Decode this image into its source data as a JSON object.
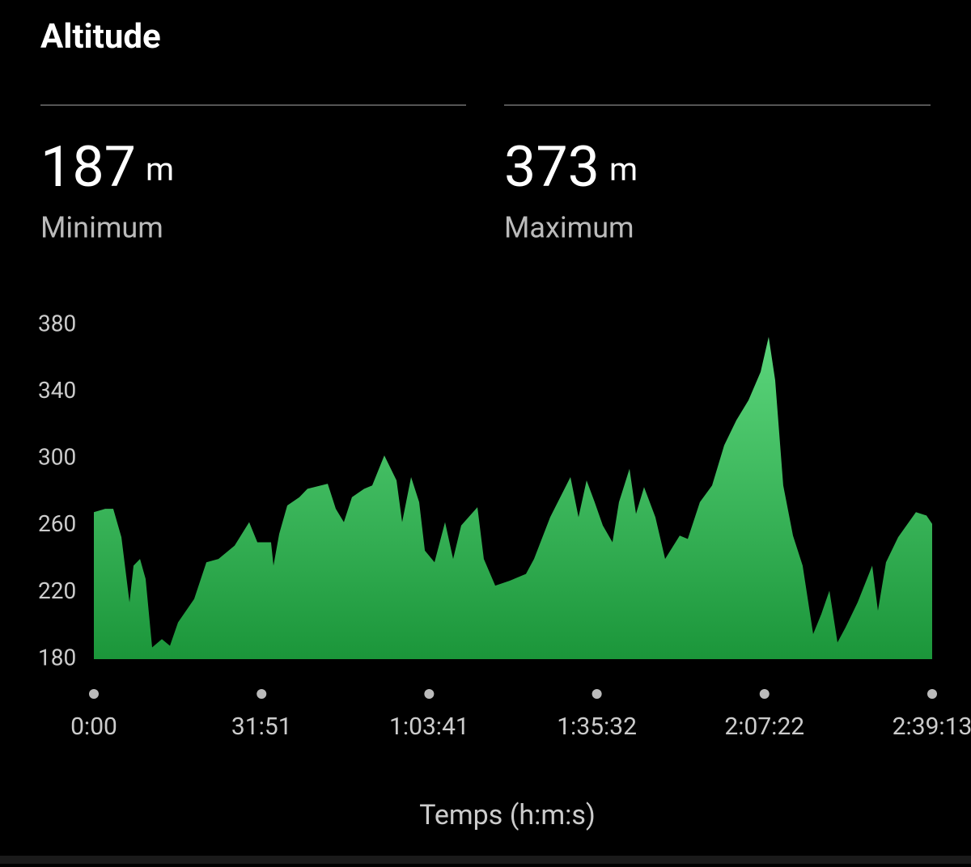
{
  "title": "Altitude",
  "stats": [
    {
      "value": 187,
      "unit": "m",
      "label": "Minimum"
    },
    {
      "value": 373,
      "unit": "m",
      "label": "Maximum"
    }
  ],
  "chart_data": {
    "type": "area",
    "x_label": "Temps (h:m:s)",
    "gradient": [
      "#5cd67c",
      "#1b963a"
    ],
    "x": [
      0,
      129,
      221,
      314,
      406,
      452,
      526,
      590,
      664,
      775,
      867,
      959,
      1143,
      1282,
      1420,
      1604,
      1770,
      1863,
      2019,
      2047,
      2112,
      2204,
      2342,
      2434,
      2665,
      2757,
      2849,
      2941,
      3080,
      3172,
      3310,
      3449,
      3513,
      3615,
      3707,
      3772,
      3882,
      4002,
      4094,
      4186,
      4371,
      4444,
      4574,
      4740,
      4924,
      5016,
      5200,
      5431,
      5523,
      5615,
      5707,
      5800,
      5910,
      5984,
      6104,
      6178,
      6270,
      6399,
      6510,
      6676,
      6768,
      6906,
      7045,
      7183,
      7321,
      7460,
      7598,
      7690,
      7764,
      7856,
      7967,
      8077,
      8197,
      8290,
      8382,
      8474,
      8566,
      8704,
      8870,
      8935,
      9027,
      9165,
      9368,
      9488,
      9553
    ],
    "values": [
      268,
      270,
      270,
      253,
      214,
      236,
      240,
      228,
      187,
      192,
      188,
      202,
      216,
      238,
      240,
      248,
      262,
      250,
      250,
      236,
      255,
      272,
      277,
      282,
      285,
      270,
      262,
      277,
      282,
      284,
      302,
      287,
      262,
      289,
      274,
      245,
      238,
      262,
      240,
      260,
      271,
      240,
      224,
      227,
      231,
      240,
      265,
      289,
      265,
      287,
      274,
      260,
      250,
      274,
      294,
      267,
      283,
      265,
      240,
      254,
      252,
      274,
      284,
      308,
      323,
      335,
      352,
      373,
      347,
      284,
      254,
      236,
      195,
      207,
      221,
      190,
      199,
      214,
      236,
      209,
      238,
      253,
      268,
      266,
      261
    ],
    "xlim": [
      0,
      9553
    ],
    "ylim": [
      180,
      380
    ],
    "xticks": [
      {
        "value": 0,
        "label": "0:00"
      },
      {
        "value": 1911,
        "label": "31:51"
      },
      {
        "value": 3821,
        "label": "1:03:41"
      },
      {
        "value": 5732,
        "label": "1:35:32"
      },
      {
        "value": 7642,
        "label": "2:07:22"
      },
      {
        "value": 9553,
        "label": "2:39:13"
      }
    ],
    "yticks": [
      180,
      220,
      260,
      300,
      340,
      380
    ]
  }
}
